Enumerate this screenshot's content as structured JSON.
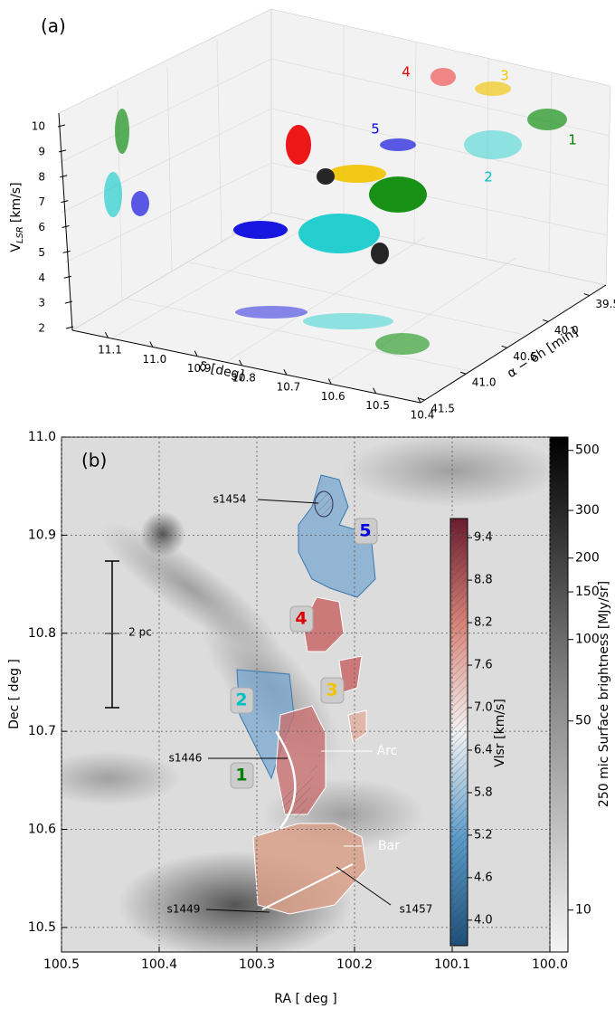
{
  "chart_data": [
    {
      "type": "scatter3d",
      "panel_label": "(a)",
      "zlabel": "V",
      "zlabel_sub": "LSR",
      "zlabel_unit": "[km/s]",
      "xlabel": "δ [deg]",
      "ylabel": "α − 6h [min]",
      "zlim": [
        2,
        10
      ],
      "zticks": [
        2,
        3,
        4,
        5,
        6,
        7,
        8,
        9,
        10
      ],
      "xlim": [
        11.18,
        10.4
      ],
      "xticks": [
        11.1,
        {
          "value": 11,
          "label": "11.0"
        },
        10.9,
        10.8,
        10.7,
        10.6,
        10.5,
        10.4
      ],
      "ylim": [
        41.55,
        39.3
      ],
      "yticks": [
        39.5,
        {
          "value": 40,
          "label": "40.0"
        },
        40.5,
        {
          "value": 41,
          "label": "41.0"
        },
        41.5
      ],
      "annotations": [
        {
          "text": "1",
          "color": "#008000"
        },
        {
          "text": "2",
          "color": "#00c0c0"
        },
        {
          "text": "3",
          "color": "#f2c400"
        },
        {
          "text": "4",
          "color": "#e00000"
        },
        {
          "text": "5",
          "color": "#0000e0"
        }
      ]
    },
    {
      "type": "image",
      "panel_label": "(b)",
      "xlabel": "RA [ deg ]",
      "ylabel": "Dec [ deg ]",
      "xlim": [
        100.5,
        100.0
      ],
      "xticks": [
        100.5,
        100.4,
        100.3,
        100.2,
        100.1,
        {
          "value": 100,
          "label": "100.0"
        }
      ],
      "ylim": [
        10.475,
        11.0
      ],
      "yticks": [
        10.5,
        10.6,
        10.7,
        10.8,
        10.9,
        {
          "value": 11,
          "label": "11.0"
        }
      ],
      "grid": true,
      "colorbar": {
        "label": "250 mic Surface brightness  [MJy/sr]",
        "scale": "log",
        "lim": [
          7,
          560
        ],
        "ticks": [
          10,
          50,
          100,
          150,
          200,
          300,
          500
        ]
      },
      "velocity_colorbar": {
        "label": "Vlsr [km/s]",
        "lim": [
          3.64,
          9.67
        ],
        "ticks": [
          {
            "value": 4,
            "label": "4.0"
          },
          4.6,
          5.2,
          5.8,
          6.4,
          {
            "value": 7,
            "label": "7.0"
          },
          7.6,
          8.2,
          8.8,
          9.4
        ]
      },
      "region_labels": [
        {
          "text": "1",
          "color": "#008000"
        },
        {
          "text": "2",
          "color": "#00c0c0"
        },
        {
          "text": "3",
          "color": "#f2c400"
        },
        {
          "text": "4",
          "color": "#e00000"
        },
        {
          "text": "5",
          "color": "#0000e0"
        }
      ],
      "annotations": [
        "s1454",
        "s1446",
        "s1449",
        "s1457",
        "Arc",
        "Bar",
        "2 pc"
      ]
    }
  ]
}
